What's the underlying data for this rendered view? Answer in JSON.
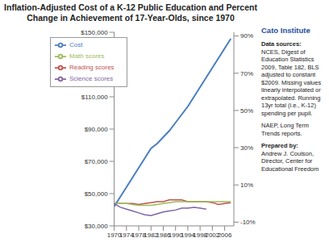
{
  "chart_data": {
    "type": "line",
    "title": "Inflation-Adjusted Cost of a K-12 Public Education and Percent Change in Achievement of 17-Year-Olds, since 1970",
    "annotations": [
      "Cato Institute",
      "Data sources:",
      "NCES, Digest of Education Statistics 2009, Table 182, BLS adjusted to constant $2009. Missing values linearly interpolated or extrapolated. Running 13yr total (i.e., K-12) spending per pupil.",
      "NAEP, Long Term Trends reports.",
      "Prepared by:",
      "Andrew J. Coulson, Director, Center for Educational Freedom"
    ],
    "x": [
      1970,
      1972,
      1974,
      1976,
      1978,
      1980,
      1982,
      1984,
      1986,
      1988,
      1990,
      1992,
      1994,
      1996,
      1998,
      2000,
      2002,
      2004,
      2006,
      2008
    ],
    "xlim": [
      1970,
      2009
    ],
    "xticks": [
      1970,
      1974,
      1978,
      1982,
      1986,
      1990,
      1994,
      1998,
      2002,
      2006
    ],
    "ylim": [
      30000,
      150000
    ],
    "yticks": [
      {
        "value": 30000,
        "label": "$30,000"
      },
      {
        "value": 50000,
        "label": "$50,000"
      },
      {
        "value": 70000,
        "label": "$70,000"
      },
      {
        "value": 90000,
        "label": "$90,000"
      },
      {
        "value": 110000,
        "label": "$110,000"
      },
      {
        "value": 130000,
        "label": "$130,000"
      },
      {
        "value": 150000,
        "label": "$150,000"
      }
    ],
    "y2lim": [
      -12,
      92
    ],
    "y2ticks": [
      {
        "value": -10,
        "label": "-10%"
      },
      {
        "value": 10,
        "label": "10%"
      },
      {
        "value": 30,
        "label": "30%"
      },
      {
        "value": 50,
        "label": "50%"
      },
      {
        "value": 70,
        "label": "70%"
      },
      {
        "value": 90,
        "label": "90%"
      }
    ],
    "grid": false,
    "legend": "upper left",
    "series": [
      {
        "name": "Cost",
        "color": "#4a7ebf",
        "values": [
          42000,
          48000,
          54000,
          60000,
          66000,
          72000,
          78000,
          81000,
          85000,
          89000,
          94000,
          99000,
          104000,
          110000,
          116000,
          122000,
          128000,
          134000,
          140000,
          146000
        ]
      },
      {
        "name": "Reading scores",
        "color": "#c0504d",
        "axis": "y2",
        "values": [
          0,
          0,
          0,
          0,
          -0.5,
          0,
          0.5,
          1,
          1,
          2,
          2,
          2,
          1,
          1,
          1,
          1,
          0.5,
          -0.5,
          0,
          0.5
        ]
      },
      {
        "name": "Math scores",
        "color": "#9bbb59",
        "axis": "y2",
        "values": [
          0,
          0,
          0,
          -0.5,
          -1,
          -1,
          -1,
          -0.5,
          0,
          0.5,
          1,
          1,
          1,
          1,
          1,
          1,
          1,
          1,
          1,
          1
        ]
      },
      {
        "name": "Science scores",
        "color": "#8064a2",
        "axis": "y2",
        "values": [
          0,
          -2,
          -3,
          -4,
          -5,
          -6,
          -6.5,
          -5.5,
          -4.5,
          -4,
          -3.5,
          -2.5,
          -2.5,
          -2,
          -2.5,
          -3,
          null,
          null,
          null,
          null
        ]
      }
    ]
  }
}
